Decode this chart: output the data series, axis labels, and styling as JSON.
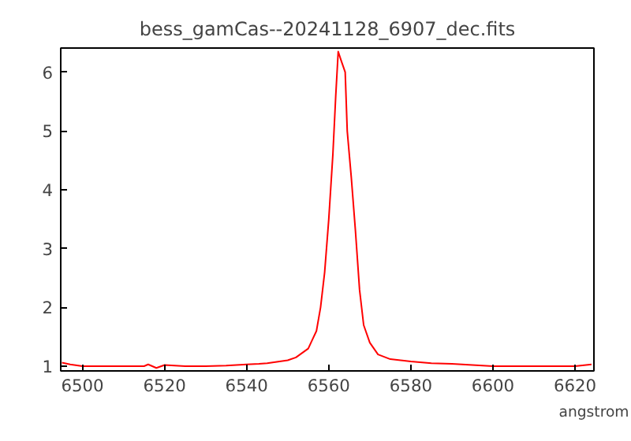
{
  "chart_data": {
    "type": "line",
    "title": "bess_gamCas--20241128_6907_dec.fits",
    "xlabel": "angstrom",
    "xlim": [
      6494.7,
      6624.6
    ],
    "ylim": [
      0.92,
      6.41
    ],
    "xticks": [
      6500,
      6520,
      6540,
      6560,
      6580,
      6600,
      6620
    ],
    "yticks": [
      1,
      2,
      3,
      4,
      5,
      6
    ],
    "grid": false,
    "series": [
      {
        "color": "#ff0000",
        "x": [
          6495,
          6497,
          6500,
          6510,
          6515,
          6516,
          6518,
          6520,
          6525,
          6530,
          6535,
          6540,
          6543,
          6545,
          6548,
          6550,
          6552,
          6553,
          6555,
          6556,
          6557,
          6558,
          6559,
          6560,
          6561,
          6561.7,
          6562.3,
          6563,
          6563.5,
          6564,
          6564.5,
          6565.5,
          6566.5,
          6567.5,
          6568.5,
          6570,
          6572,
          6575,
          6580,
          6585,
          6590,
          6600,
          6610,
          6620,
          6624
        ],
        "values": [
          1.06,
          1.03,
          1.0,
          1.0,
          1.0,
          1.03,
          0.97,
          1.02,
          1.0,
          1.0,
          1.01,
          1.03,
          1.04,
          1.05,
          1.08,
          1.1,
          1.15,
          1.2,
          1.3,
          1.45,
          1.6,
          2.0,
          2.6,
          3.5,
          4.6,
          5.6,
          6.35,
          6.2,
          6.1,
          6.0,
          5.0,
          4.2,
          3.3,
          2.3,
          1.7,
          1.4,
          1.2,
          1.12,
          1.08,
          1.05,
          1.04,
          1.0,
          1.0,
          1.0,
          1.03
        ]
      }
    ]
  }
}
